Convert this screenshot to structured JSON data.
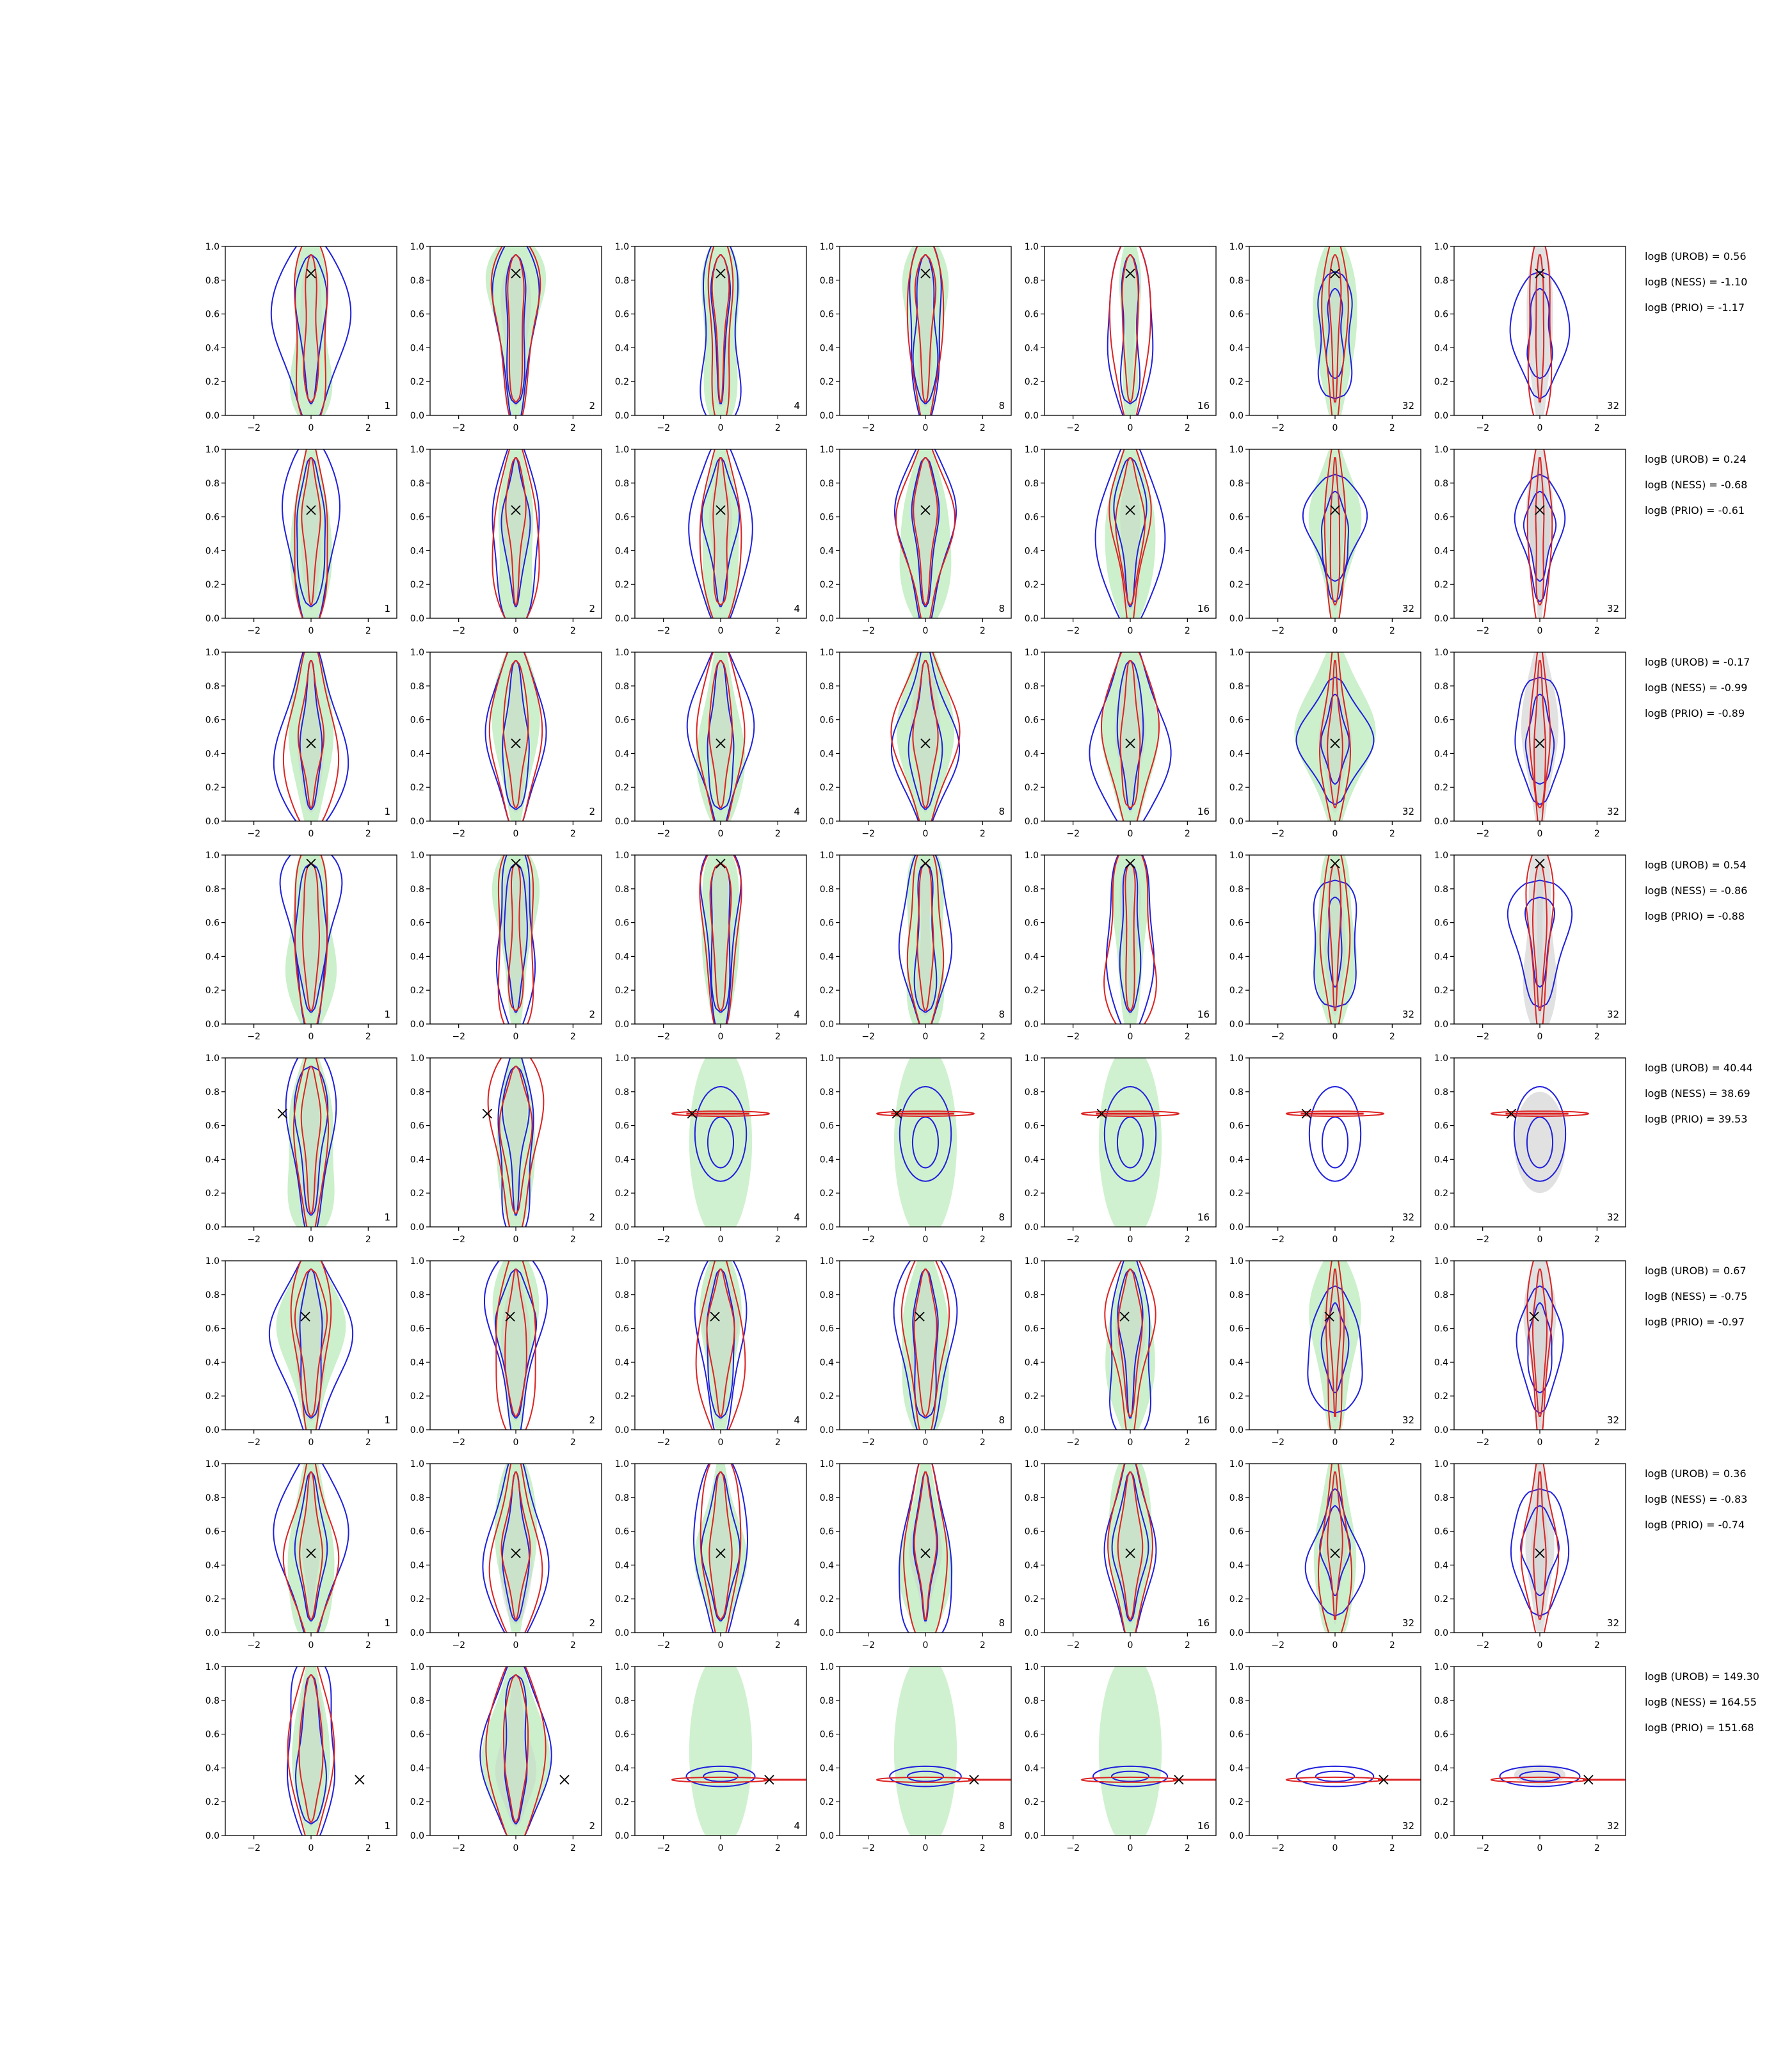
{
  "figure": {
    "rows": 8,
    "cols": 7,
    "colors": {
      "blue": "#1f1fdd",
      "red": "#dd2222",
      "green_fill": "#a8e6a8",
      "gray_fill": "#c8c8c8",
      "marker": "#000000"
    }
  },
  "chart_data": {
    "type": "contour-grid",
    "xlim": [
      -3,
      3
    ],
    "ylim": [
      0.0,
      1.0
    ],
    "x_ticks": [
      -2,
      0,
      2
    ],
    "y_ticks": [
      0.0,
      0.2,
      0.4,
      0.6,
      0.8,
      1.0
    ],
    "x_tick_labels": [
      "−2",
      "0",
      "2"
    ],
    "y_tick_labels": [
      "0.0",
      "0.2",
      "0.4",
      "0.6",
      "0.8",
      "1.0"
    ],
    "panel_labels": [
      "1",
      "2",
      "4",
      "8",
      "16",
      "32",
      "32"
    ],
    "rows": [
      {
        "marker": [
          0.0,
          0.84
        ],
        "bayes": [
          "logB (UROB) = 0.56",
          "logB (NESS) = -1.10",
          "logB (PRIO) = -1.17"
        ]
      },
      {
        "marker": [
          0.0,
          0.64
        ],
        "bayes": [
          "logB (UROB) = 0.24",
          "logB (NESS) = -0.68",
          "logB (PRIO) = -0.61"
        ]
      },
      {
        "marker": [
          0.0,
          0.46
        ],
        "bayes": [
          "logB (UROB) = -0.17",
          "logB (NESS) = -0.99",
          "logB (PRIO) = -0.89"
        ]
      },
      {
        "marker": [
          0.0,
          0.95
        ],
        "bayes": [
          "logB (UROB) = 0.54",
          "logB (NESS) = -0.86",
          "logB (PRIO) = -0.88"
        ]
      },
      {
        "marker": [
          -1.0,
          0.67
        ],
        "bayes": [
          "logB (UROB) = 40.44",
          "logB (NESS) = 38.69",
          "logB (PRIO) = 39.53"
        ]
      },
      {
        "marker": [
          -0.2,
          0.67
        ],
        "bayes": [
          "logB (UROB) = 0.67",
          "logB (NESS) = -0.75",
          "logB (PRIO) = -0.97"
        ]
      },
      {
        "marker": [
          0.0,
          0.47
        ],
        "bayes": [
          "logB (UROB) = 0.36",
          "logB (NESS) = -0.83",
          "logB (PRIO) = -0.74"
        ]
      },
      {
        "marker": [
          1.7,
          0.33
        ],
        "bayes": [
          "logB (UROB) = 149.30",
          "logB (NESS) = 164.55",
          "logB (PRIO) = 151.68"
        ]
      }
    ]
  }
}
